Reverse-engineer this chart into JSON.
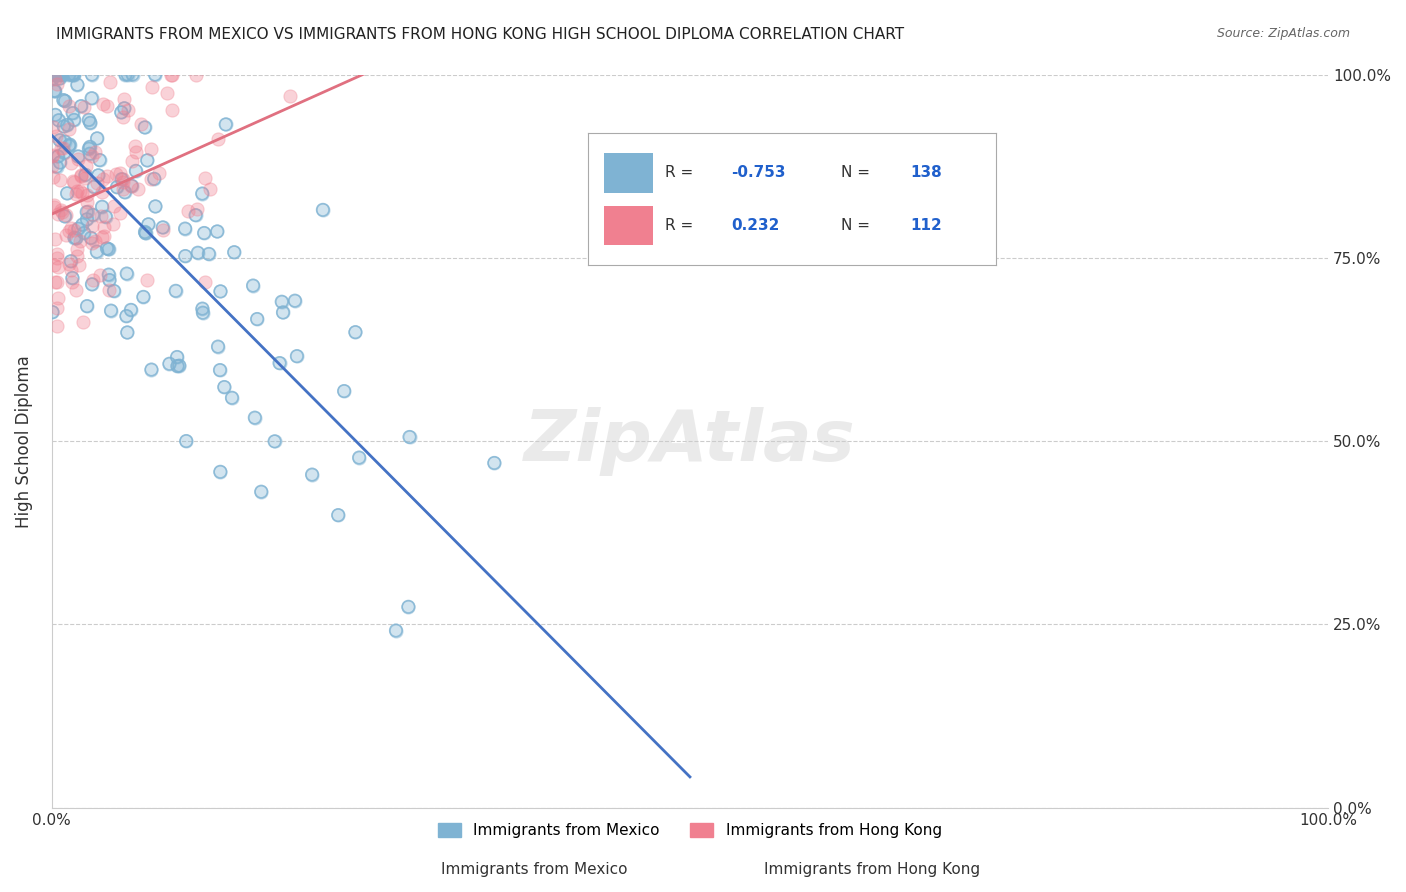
{
  "title": "IMMIGRANTS FROM MEXICO VS IMMIGRANTS FROM HONG KONG HIGH SCHOOL DIPLOMA CORRELATION CHART",
  "source": "Source: ZipAtlas.com",
  "xlabel": "",
  "ylabel": "High School Diploma",
  "xticklabels": [
    "0.0%",
    "100.0%"
  ],
  "yticklabels": [
    "0.0%",
    "25.0%",
    "50.0%",
    "75.0%",
    "100.0%"
  ],
  "legend_entries": [
    {
      "label": "Immigrants from Mexico",
      "color": "#a8c4e0"
    },
    {
      "label": "Immigrants from Hong Kong",
      "color": "#f4a0b0"
    }
  ],
  "r_mexico": -0.753,
  "n_mexico": 138,
  "r_hongkong": 0.232,
  "n_hongkong": 112,
  "mexico_color": "#7fb3d3",
  "hongkong_color": "#f08090",
  "mexico_line_color": "#4472c4",
  "hongkong_line_color": "#e07080",
  "watermark": "ZipAtlas",
  "background_color": "#ffffff",
  "grid_color": "#cccccc"
}
